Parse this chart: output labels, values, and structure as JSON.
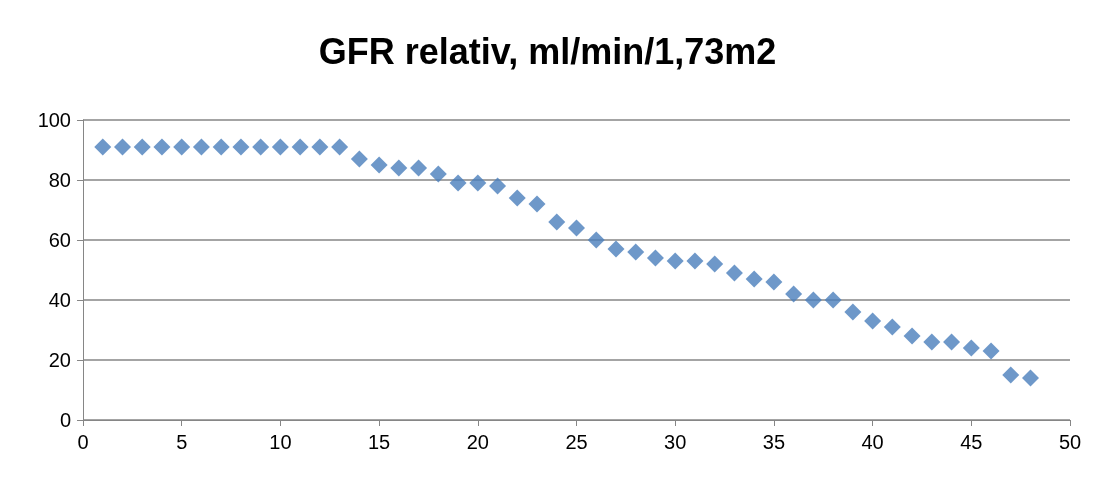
{
  "chart_data": {
    "type": "scatter",
    "title": "GFR relativ, ml/min/1,73m2",
    "x": [
      1,
      2,
      3,
      4,
      5,
      6,
      7,
      8,
      9,
      10,
      11,
      12,
      13,
      14,
      15,
      16,
      17,
      18,
      19,
      20,
      21,
      22,
      23,
      24,
      25,
      26,
      27,
      28,
      29,
      30,
      31,
      32,
      33,
      34,
      35,
      36,
      37,
      38,
      39,
      40,
      41,
      42,
      43,
      44,
      45,
      46,
      47,
      48
    ],
    "values": [
      91,
      91,
      91,
      91,
      91,
      91,
      91,
      91,
      91,
      91,
      91,
      91,
      91,
      87,
      85,
      84,
      84,
      82,
      79,
      79,
      78,
      74,
      72,
      66,
      64,
      60,
      57,
      56,
      54,
      53,
      53,
      52,
      49,
      47,
      46,
      42,
      40,
      40,
      36,
      33,
      31,
      28,
      26,
      26,
      24,
      23,
      15,
      14
    ],
    "color": "#4a7ebb",
    "marker": "diamond",
    "xlim": [
      0,
      50
    ],
    "xticks": [
      0,
      5,
      10,
      15,
      20,
      25,
      30,
      35,
      40,
      45,
      50
    ],
    "ylim": [
      0,
      100
    ],
    "yticks": [
      0,
      20,
      40,
      60,
      80,
      100
    ],
    "grid": "y"
  }
}
